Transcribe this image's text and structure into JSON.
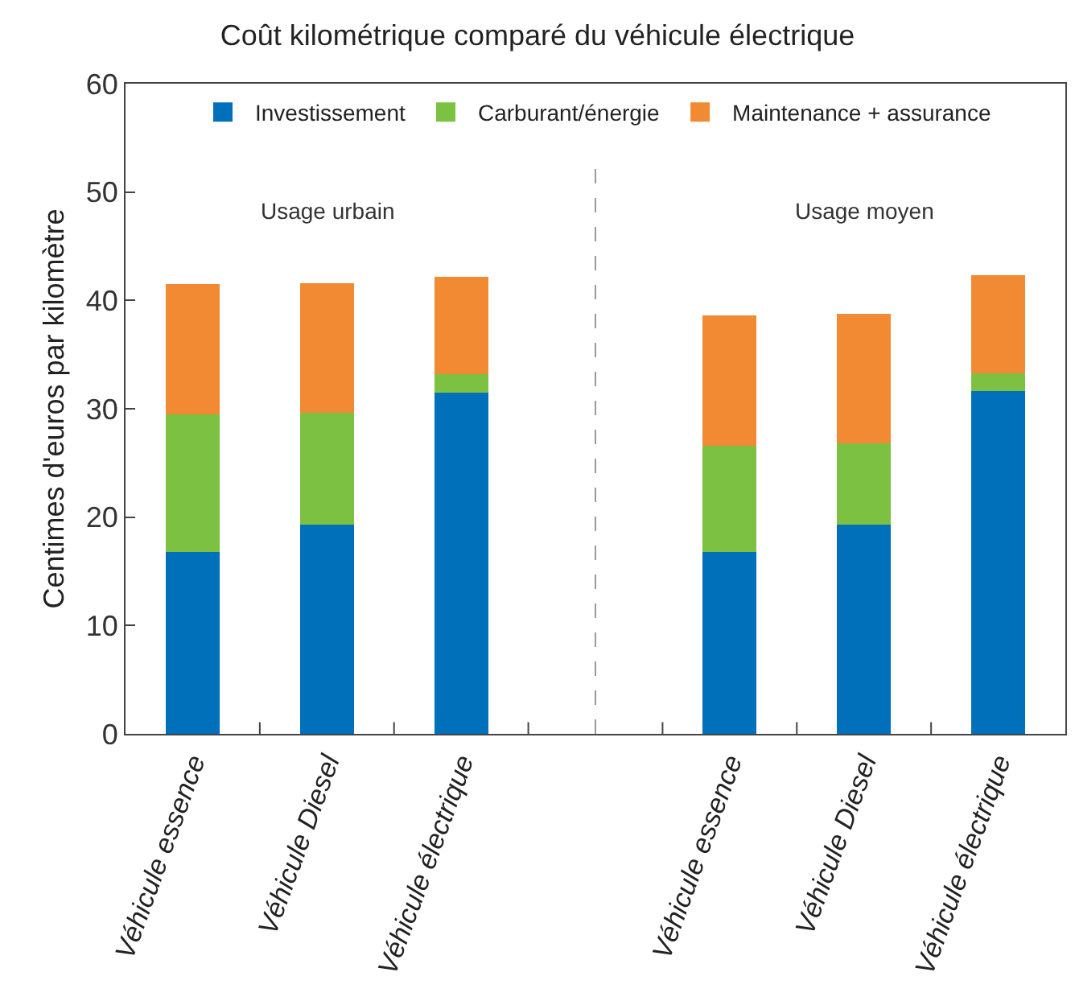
{
  "chart_data": {
    "type": "bar",
    "stacked": true,
    "title": "Coût kilométrique comparé du véhicule électrique",
    "ylabel": "Centimes d'euros par kilomètre",
    "categories": [
      "Véhicule essence",
      "Véhicule Diesel",
      "Véhicule électrique",
      null,
      "Véhicule essence",
      "Véhicule Diesel",
      "Véhicule électrique"
    ],
    "series": [
      {
        "name": "Investissement",
        "color": "#0070bb",
        "values": [
          16.8,
          19.3,
          31.5,
          null,
          16.8,
          19.3,
          31.6
        ]
      },
      {
        "name": "Carburant/énergie",
        "color": "#7dc142",
        "values": [
          12.7,
          10.3,
          1.7,
          null,
          9.8,
          7.5,
          1.7
        ]
      },
      {
        "name": "Maintenance + assurance",
        "color": "#f28a33",
        "values": [
          12.0,
          12.0,
          9.0,
          null,
          12.0,
          12.0,
          9.0
        ]
      }
    ],
    "ylim": [
      0,
      60
    ],
    "yticks": [
      0,
      10,
      20,
      30,
      40,
      50,
      60
    ],
    "legend": "top",
    "annotations": [
      "Usage urbain",
      "Usage moyen"
    ]
  }
}
